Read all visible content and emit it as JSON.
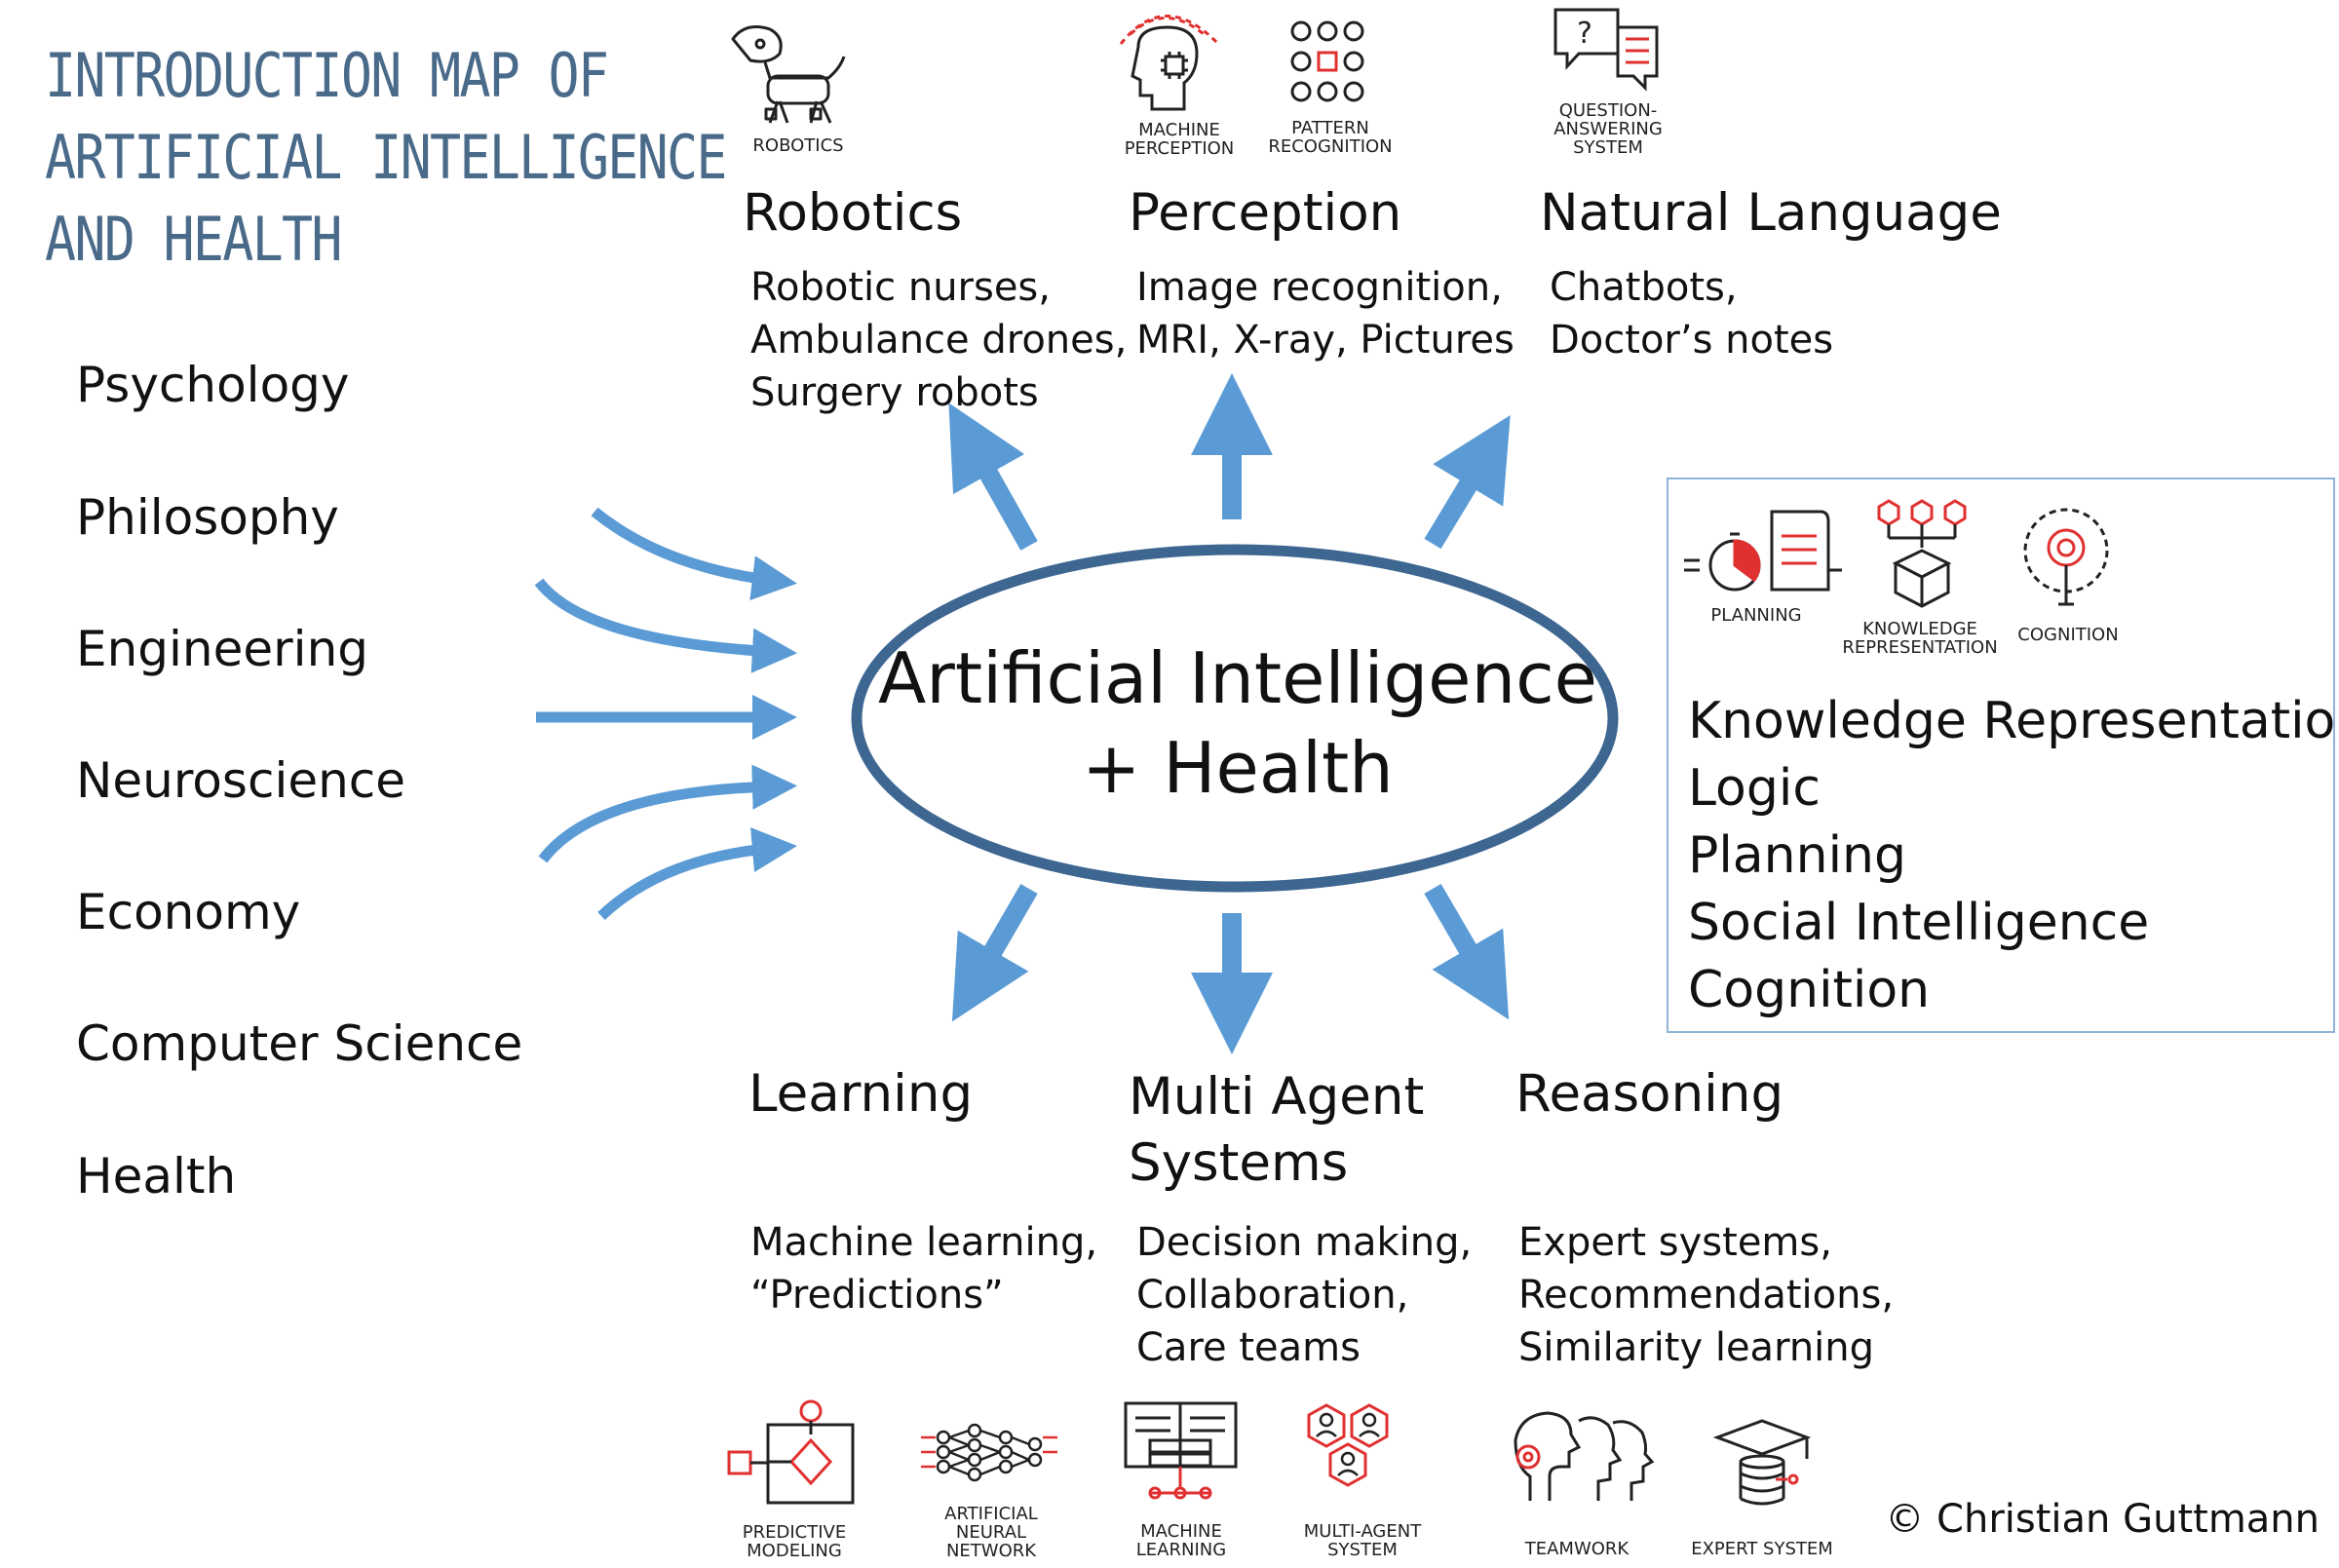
{
  "title_lines": [
    "INTRODUCTION MAP OF",
    "ARTIFICIAL INTELLIGENCE",
    "AND HEALTH"
  ],
  "disciplines": [
    "Psychology",
    "Philosophy",
    "Engineering",
    "Neuroscience",
    "Economy",
    "Computer Science",
    "Health"
  ],
  "center": {
    "line1": "Artificial Intelligence",
    "line2": "+ Health"
  },
  "top_icons": {
    "robotics": "ROBOTICS",
    "machine_perception": [
      "MACHINE",
      "PERCEPTION"
    ],
    "pattern_recognition": [
      "PATTERN",
      "RECOGNITION"
    ],
    "question_answering": [
      "QUESTION-",
      "ANSWERING",
      "SYSTEM"
    ]
  },
  "branches_top": [
    {
      "heading": "Robotics",
      "desc": [
        "Robotic nurses,",
        "Ambulance drones,",
        "Surgery robots"
      ]
    },
    {
      "heading": "Perception",
      "desc": [
        "Image recognition,",
        "MRI, X-ray, Pictures"
      ]
    },
    {
      "heading": "Natural Language",
      "desc": [
        "Chatbots,",
        "Doctor’s notes"
      ]
    }
  ],
  "branches_bottom": [
    {
      "heading": [
        "Learning"
      ],
      "desc": [
        "Machine learning,",
        "“Predictions”"
      ]
    },
    {
      "heading": [
        "Multi Agent",
        "Systems"
      ],
      "desc": [
        "Decision making,",
        "Collaboration,",
        "Care teams"
      ]
    },
    {
      "heading": [
        "Reasoning"
      ],
      "desc": [
        "Expert systems,",
        "Recommendations,",
        "Similarity learning"
      ]
    }
  ],
  "kr_box": {
    "icons": {
      "planning": [
        "PLANNING"
      ],
      "knowledge": [
        "KNOWLEDGE",
        "REPRESENTATION"
      ],
      "cognition": [
        "COGNITION"
      ]
    },
    "items": [
      "Knowledge Representation",
      "Logic",
      "Planning",
      "Social Intelligence",
      "Cognition"
    ]
  },
  "bottom_icons": [
    [
      "PREDICTIVE",
      "MODELING"
    ],
    [
      "ARTIFICIAL",
      "NEURAL",
      "NETWORK"
    ],
    [
      "MACHINE",
      "LEARNING"
    ],
    [
      "MULTI-AGENT",
      "SYSTEM"
    ],
    [
      "TEAMWORK"
    ],
    [
      "EXPERT SYSTEM"
    ]
  ],
  "copyright": "© Christian Guttmann",
  "colors": {
    "arrow": "#5b9bd5",
    "ellipse": "#3d6691",
    "title": "#4a6a8a",
    "icon_red": "#e03030",
    "box_border": "#8fb4d6"
  }
}
